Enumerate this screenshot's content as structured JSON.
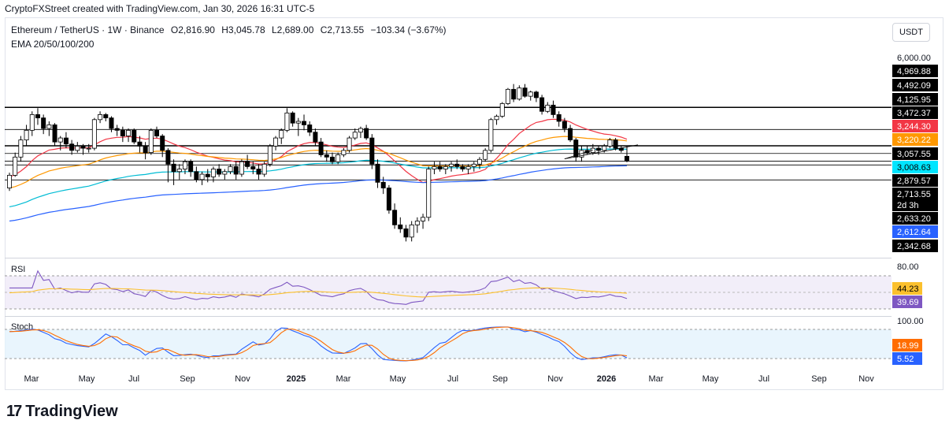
{
  "credit": "CryptoFXStreet created with TradingView.com, Jan 30, 2026 16:31 UTC-5",
  "legend": {
    "symbol": "Ethereum / TetherUS · 1W · Binance",
    "o": "O2,816.90",
    "h": "H3,045.78",
    "l": "L2,689.00",
    "c": "C2,713.55",
    "chg": "−103.34 (−3.67%)",
    "ema": "EMA 20/50/100/200"
  },
  "currency_button": "USDT",
  "rsi_title": "RSI",
  "stoch_title": "Stoch",
  "brand": "TradingView",
  "colors": {
    "up": "#ffffff",
    "down": "#000000",
    "ema20": "#f23645",
    "ema50": "#ff9800",
    "ema100": "#00bcd4",
    "ema200": "#2962ff",
    "rsi": "#7e57c2",
    "rsi_ma": "#fbc02d",
    "stoch_k": "#2962ff",
    "stoch_d": "#ff6d00"
  },
  "chart_data": {
    "type": "candlestick",
    "timeframe": "1W",
    "price_axis_ticks": [
      "6,000.00"
    ],
    "x_ticks": [
      "Mar",
      "May",
      "Jul",
      "Sep",
      "Nov",
      "2025",
      "Mar",
      "May",
      "Jul",
      "Sep",
      "Nov",
      "2026",
      "Mar",
      "May",
      "Jul",
      "Sep",
      "Nov"
    ],
    "price_labels": [
      {
        "text": "4,969.88",
        "bg": "#000000",
        "fg": "#ffffff",
        "value": 4969.88
      },
      {
        "text": "4,492.09",
        "bg": "#000000",
        "fg": "#ffffff",
        "value": 4492.09
      },
      {
        "text": "4,125.95",
        "bg": "#000000",
        "fg": "#ffffff",
        "value": 4125.95
      },
      {
        "text": "3,472.37",
        "bg": "#000000",
        "fg": "#ffffff",
        "value": 3472.37
      },
      {
        "text": "3,244.30",
        "bg": "#f23645",
        "fg": "#ffffff",
        "value": 3244.3
      },
      {
        "text": "3,220.22",
        "bg": "#ff9800",
        "fg": "#ffffff",
        "value": 3220.22
      },
      {
        "text": "3,057.55",
        "bg": "#000000",
        "fg": "#ffffff",
        "value": 3057.55
      },
      {
        "text": "3,008.63",
        "bg": "#00e5ff",
        "fg": "#000000",
        "value": 3008.63
      },
      {
        "text": "2,879.57",
        "bg": "#000000",
        "fg": "#ffffff",
        "value": 2879.57
      },
      {
        "text": "2,713.55",
        "bg": "#000000",
        "fg": "#ffffff",
        "value": 2713.55
      },
      {
        "text": "2d 3h",
        "bg": "#000000",
        "fg": "#ffffff"
      },
      {
        "text": "2,633.20",
        "bg": "#000000",
        "fg": "#ffffff",
        "value": 2633.2
      },
      {
        "text": "2,612.64",
        "bg": "#2962ff",
        "fg": "#ffffff",
        "value": 2612.64
      },
      {
        "text": "2,342.68",
        "bg": "#000000",
        "fg": "#ffffff",
        "value": 2342.68
      }
    ],
    "horizontal_levels": [
      4125.95,
      3472.37,
      3057.55,
      2879.57,
      2713.55,
      2633.2,
      2342.68
    ],
    "candles": [
      [
        2200,
        2480,
        2150,
        2430
      ],
      [
        2430,
        2900,
        2400,
        2800
      ],
      [
        2800,
        3300,
        2700,
        3200
      ],
      [
        3200,
        3600,
        3050,
        3450
      ],
      [
        3450,
        4000,
        3300,
        3900
      ],
      [
        3900,
        4100,
        3600,
        3800
      ],
      [
        3800,
        3900,
        3350,
        3500
      ],
      [
        3500,
        3700,
        3300,
        3600
      ],
      [
        3600,
        3650,
        3050,
        3150
      ],
      [
        3150,
        3300,
        2950,
        3250
      ],
      [
        3250,
        3400,
        3000,
        3100
      ],
      [
        3100,
        3200,
        2850,
        2950
      ],
      [
        2950,
        3150,
        2900,
        3050
      ],
      [
        3050,
        3100,
        2850,
        3000
      ],
      [
        3000,
        3100,
        2900,
        3000
      ],
      [
        3000,
        3800,
        2950,
        3750
      ],
      [
        3750,
        4000,
        3650,
        3900
      ],
      [
        3900,
        3950,
        3700,
        3800
      ],
      [
        3800,
        3850,
        3400,
        3500
      ],
      [
        3500,
        3600,
        3300,
        3450
      ],
      [
        3450,
        3550,
        3150,
        3300
      ],
      [
        3300,
        3500,
        3150,
        3450
      ],
      [
        3450,
        3500,
        3100,
        3150
      ],
      [
        3150,
        3300,
        2900,
        3050
      ],
      [
        3050,
        3150,
        2750,
        2900
      ],
      [
        2900,
        3500,
        2850,
        3450
      ],
      [
        3450,
        3550,
        3250,
        3300
      ],
      [
        3300,
        3350,
        2800,
        2950
      ],
      [
        2950,
        3000,
        2300,
        2650
      ],
      [
        2650,
        2750,
        2250,
        2500
      ],
      [
        2500,
        2650,
        2350,
        2550
      ],
      [
        2550,
        2750,
        2450,
        2700
      ],
      [
        2700,
        2750,
        2400,
        2500
      ],
      [
        2500,
        2600,
        2300,
        2350
      ],
      [
        2350,
        2500,
        2250,
        2450
      ],
      [
        2450,
        2550,
        2300,
        2400
      ],
      [
        2400,
        2600,
        2300,
        2550
      ],
      [
        2550,
        2650,
        2400,
        2450
      ],
      [
        2450,
        2550,
        2350,
        2500
      ],
      [
        2500,
        2650,
        2450,
        2600
      ],
      [
        2600,
        2700,
        2350,
        2450
      ],
      [
        2450,
        2750,
        2400,
        2700
      ],
      [
        2700,
        2850,
        2550,
        2600
      ],
      [
        2600,
        2700,
        2450,
        2550
      ],
      [
        2550,
        2650,
        2350,
        2450
      ],
      [
        2450,
        2700,
        2400,
        2650
      ],
      [
        2650,
        3100,
        2600,
        3050
      ],
      [
        3050,
        3300,
        2950,
        3250
      ],
      [
        3250,
        3500,
        3100,
        3450
      ],
      [
        3450,
        4100,
        3400,
        3950
      ],
      [
        3950,
        4000,
        3550,
        3650
      ],
      [
        3650,
        3800,
        3300,
        3700
      ],
      [
        3700,
        3900,
        3450,
        3600
      ],
      [
        3600,
        3700,
        3300,
        3400
      ],
      [
        3400,
        3500,
        3050,
        3150
      ],
      [
        3150,
        3250,
        2800,
        2850
      ],
      [
        2850,
        2950,
        2700,
        2800
      ],
      [
        2800,
        2900,
        2650,
        2700
      ],
      [
        2700,
        2900,
        2650,
        2850
      ],
      [
        2850,
        3000,
        2800,
        2950
      ],
      [
        2950,
        3300,
        2900,
        3250
      ],
      [
        3250,
        3500,
        3200,
        3400
      ],
      [
        3400,
        3550,
        3250,
        3500
      ],
      [
        3500,
        3600,
        3200,
        3250
      ],
      [
        3250,
        3350,
        2550,
        2650
      ],
      [
        2650,
        2750,
        2200,
        2300
      ],
      [
        2300,
        2400,
        2100,
        2200
      ],
      [
        2200,
        2250,
        1800,
        1850
      ],
      [
        1850,
        1950,
        1600,
        1650
      ],
      [
        1650,
        1750,
        1550,
        1600
      ],
      [
        1600,
        1650,
        1450,
        1500
      ],
      [
        1500,
        1700,
        1450,
        1650
      ],
      [
        1650,
        1750,
        1550,
        1700
      ],
      [
        1700,
        1800,
        1600,
        1750
      ],
      [
        1750,
        2600,
        1700,
        2550
      ],
      [
        2550,
        2700,
        2450,
        2600
      ],
      [
        2600,
        2700,
        2500,
        2550
      ],
      [
        2550,
        2650,
        2450,
        2600
      ],
      [
        2600,
        2700,
        2500,
        2650
      ],
      [
        2650,
        2750,
        2550,
        2600
      ],
      [
        2600,
        2650,
        2500,
        2550
      ],
      [
        2550,
        2650,
        2450,
        2600
      ],
      [
        2600,
        2700,
        2500,
        2650
      ],
      [
        2650,
        2800,
        2550,
        2750
      ],
      [
        2750,
        3000,
        2700,
        2950
      ],
      [
        2950,
        3800,
        2900,
        3750
      ],
      [
        3750,
        3900,
        3600,
        3850
      ],
      [
        3850,
        4300,
        3800,
        4250
      ],
      [
        4250,
        4800,
        4200,
        4750
      ],
      [
        4750,
        4950,
        4300,
        4400
      ],
      [
        4400,
        4900,
        4350,
        4800
      ],
      [
        4800,
        4950,
        4450,
        4500
      ],
      [
        4500,
        4700,
        4350,
        4650
      ],
      [
        4650,
        4700,
        4300,
        4450
      ],
      [
        4450,
        4550,
        3900,
        4000
      ],
      [
        4000,
        4300,
        3950,
        4200
      ],
      [
        4200,
        4350,
        3800,
        3900
      ],
      [
        3900,
        4000,
        3550,
        3700
      ],
      [
        3700,
        3800,
        3400,
        3500
      ],
      [
        3500,
        3600,
        3150,
        3200
      ],
      [
        3200,
        3250,
        2700,
        2800
      ],
      [
        2800,
        3050,
        2700,
        2950
      ],
      [
        2950,
        3050,
        2850,
        2900
      ],
      [
        2900,
        3100,
        2850,
        3000
      ],
      [
        3000,
        3050,
        2850,
        2950
      ],
      [
        2950,
        3100,
        2900,
        3050
      ],
      [
        3050,
        3250,
        3000,
        3200
      ],
      [
        3200,
        3250,
        2950,
        3000
      ],
      [
        3000,
        3050,
        2900,
        2950
      ],
      [
        2816.9,
        3045.78,
        2689.0,
        2713.55
      ]
    ],
    "series": [
      {
        "name": "EMA 20"
      },
      {
        "name": "EMA 50"
      },
      {
        "name": "EMA 100"
      },
      {
        "name": "EMA 200"
      }
    ],
    "rsi": {
      "levels": [
        80
      ],
      "rsi_value": "39.69",
      "ma_value": "44.23"
    },
    "stoch": {
      "levels": [
        100
      ],
      "k_value": "5.52",
      "d_value": "18.99"
    }
  }
}
